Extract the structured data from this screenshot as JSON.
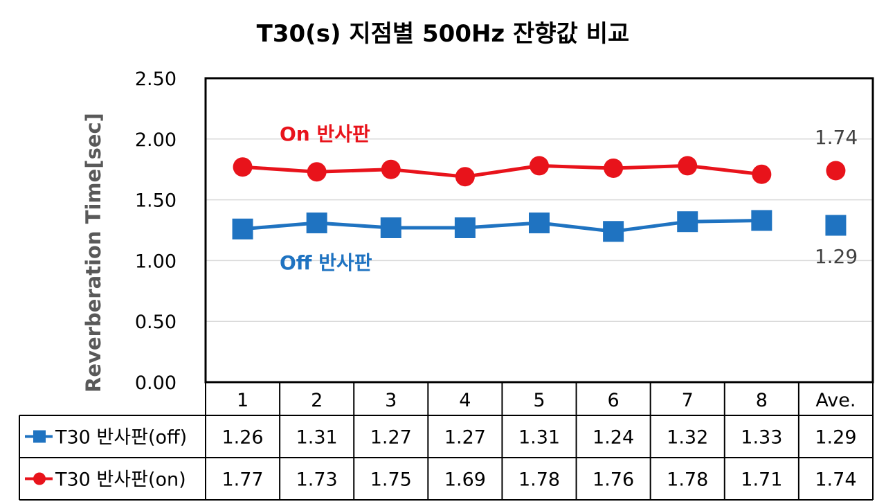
{
  "chart_data": {
    "type": "line",
    "title": "T30(s) 지점별 500Hz 잔향값 비교",
    "ylabel": "Reverberation Time[sec]",
    "xlabel": "",
    "ylim": [
      0,
      2.5
    ],
    "yticks": [
      "0.00",
      "0.50",
      "1.00",
      "1.50",
      "2.00",
      "2.50"
    ],
    "categories": [
      "1",
      "2",
      "3",
      "4",
      "5",
      "6",
      "7",
      "8",
      "Ave."
    ],
    "series": [
      {
        "name": "T30 반사판(off)",
        "color": "#1f73c1",
        "marker": "square",
        "values": [
          1.26,
          1.31,
          1.27,
          1.27,
          1.31,
          1.24,
          1.32,
          1.33,
          1.29
        ],
        "labels": [
          "1.26",
          "1.31",
          "1.27",
          "1.27",
          "1.31",
          "1.24",
          "1.32",
          "1.33",
          "1.29"
        ]
      },
      {
        "name": "T30 반사판(on)",
        "color": "#e8131b",
        "marker": "circle",
        "values": [
          1.77,
          1.73,
          1.75,
          1.69,
          1.78,
          1.76,
          1.78,
          1.71,
          1.74
        ],
        "labels": [
          "1.77",
          "1.73",
          "1.75",
          "1.69",
          "1.78",
          "1.76",
          "1.78",
          "1.71",
          "1.74"
        ]
      }
    ],
    "annotations": {
      "on_text": "On 반사판",
      "off_text": "Off 반사판",
      "ave_on": "1.74",
      "ave_off": "1.29"
    },
    "grid": true,
    "legend": "data-table"
  }
}
